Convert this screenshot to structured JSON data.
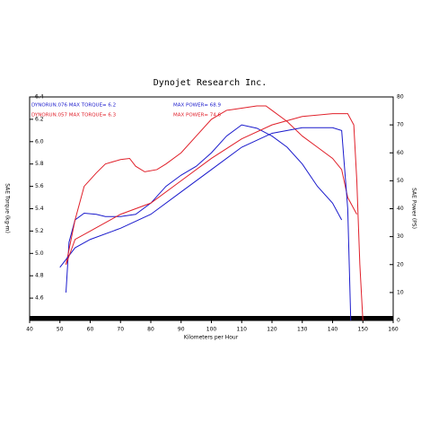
{
  "chart_data": {
    "type": "line",
    "title": "Dynojet Research Inc.",
    "x_label": "Kilometers per Hour",
    "y_label": "SAE Torque (kg-m)",
    "y2_label": "SAE Power (PS)",
    "annotations": [
      {
        "text": "DYNORUN.076  MAX TORQUE= 6.2",
        "color": "#1a1acc"
      },
      {
        "text": "DYNORUN.057  MAX TORQUE= 6.3",
        "color": "#e0202a"
      },
      {
        "text": "MAX POWER= 68.9",
        "color": "#1a1acc"
      },
      {
        "text": "MAX POWER= 74.6",
        "color": "#e0202a"
      }
    ],
    "xlim": [
      40,
      160
    ],
    "xticks": [
      40,
      50,
      60,
      70,
      80,
      90,
      100,
      110,
      120,
      130,
      140,
      150,
      160
    ],
    "ylim": [
      4.4,
      6.4
    ],
    "yticks": [
      {
        "value": 4.6,
        "label": "4.6"
      },
      {
        "value": 4.8,
        "label": "4.8"
      },
      {
        "value": 5.0,
        "label": "5.0"
      },
      {
        "value": 5.2,
        "label": "5.2"
      },
      {
        "value": 5.4,
        "label": "5.4"
      },
      {
        "value": 5.6,
        "label": "5.6"
      },
      {
        "value": 5.8,
        "label": "5.8"
      },
      {
        "value": 6.0,
        "label": "6.0"
      },
      {
        "value": 6.2,
        "label": "6.2"
      },
      {
        "value": 6.4,
        "label": "6.4"
      }
    ],
    "y2lim": [
      0,
      80
    ],
    "y2ticks": [
      0,
      10,
      20,
      30,
      40,
      50,
      60,
      70,
      80
    ],
    "series": [
      {
        "color": "#1a1acc",
        "x": [
          52,
          53,
          55,
          58,
          62,
          65,
          70,
          75,
          80,
          85,
          90,
          95,
          100,
          105,
          110,
          115,
          120,
          125,
          130,
          135,
          140,
          143
        ],
        "values": [
          4.65,
          5.1,
          5.3,
          5.36,
          5.35,
          5.33,
          5.33,
          5.35,
          5.45,
          5.6,
          5.7,
          5.78,
          5.9,
          6.05,
          6.15,
          6.12,
          6.05,
          5.95,
          5.8,
          5.6,
          5.45,
          5.3
        ]
      },
      {
        "color": "#e0202a",
        "x": [
          52,
          55,
          58,
          62,
          65,
          70,
          73,
          75,
          78,
          82,
          85,
          90,
          95,
          100,
          105,
          110,
          115,
          118,
          120,
          125,
          130,
          135,
          140,
          143,
          145,
          148
        ],
        "values": [
          4.9,
          5.3,
          5.6,
          5.72,
          5.8,
          5.84,
          5.85,
          5.78,
          5.73,
          5.75,
          5.8,
          5.9,
          6.05,
          6.2,
          6.28,
          6.3,
          6.32,
          6.32,
          6.28,
          6.18,
          6.05,
          5.95,
          5.85,
          5.75,
          5.5,
          5.35
        ]
      },
      {
        "color": "#1a1acc",
        "axis": "y2",
        "x": [
          50,
          55,
          60,
          70,
          80,
          90,
          100,
          110,
          120,
          130,
          140,
          143,
          145,
          146
        ],
        "values": [
          19,
          26,
          29,
          33,
          38,
          46,
          54,
          62,
          67,
          69,
          69,
          68,
          40,
          0
        ]
      },
      {
        "color": "#e0202a",
        "axis": "y2",
        "x": [
          52,
          55,
          60,
          70,
          80,
          90,
          100,
          110,
          120,
          130,
          140,
          145,
          147,
          148,
          149,
          150
        ],
        "values": [
          20,
          29,
          32,
          38,
          42,
          50,
          58,
          65,
          70,
          73,
          74,
          74,
          70,
          50,
          20,
          0
        ]
      }
    ]
  }
}
